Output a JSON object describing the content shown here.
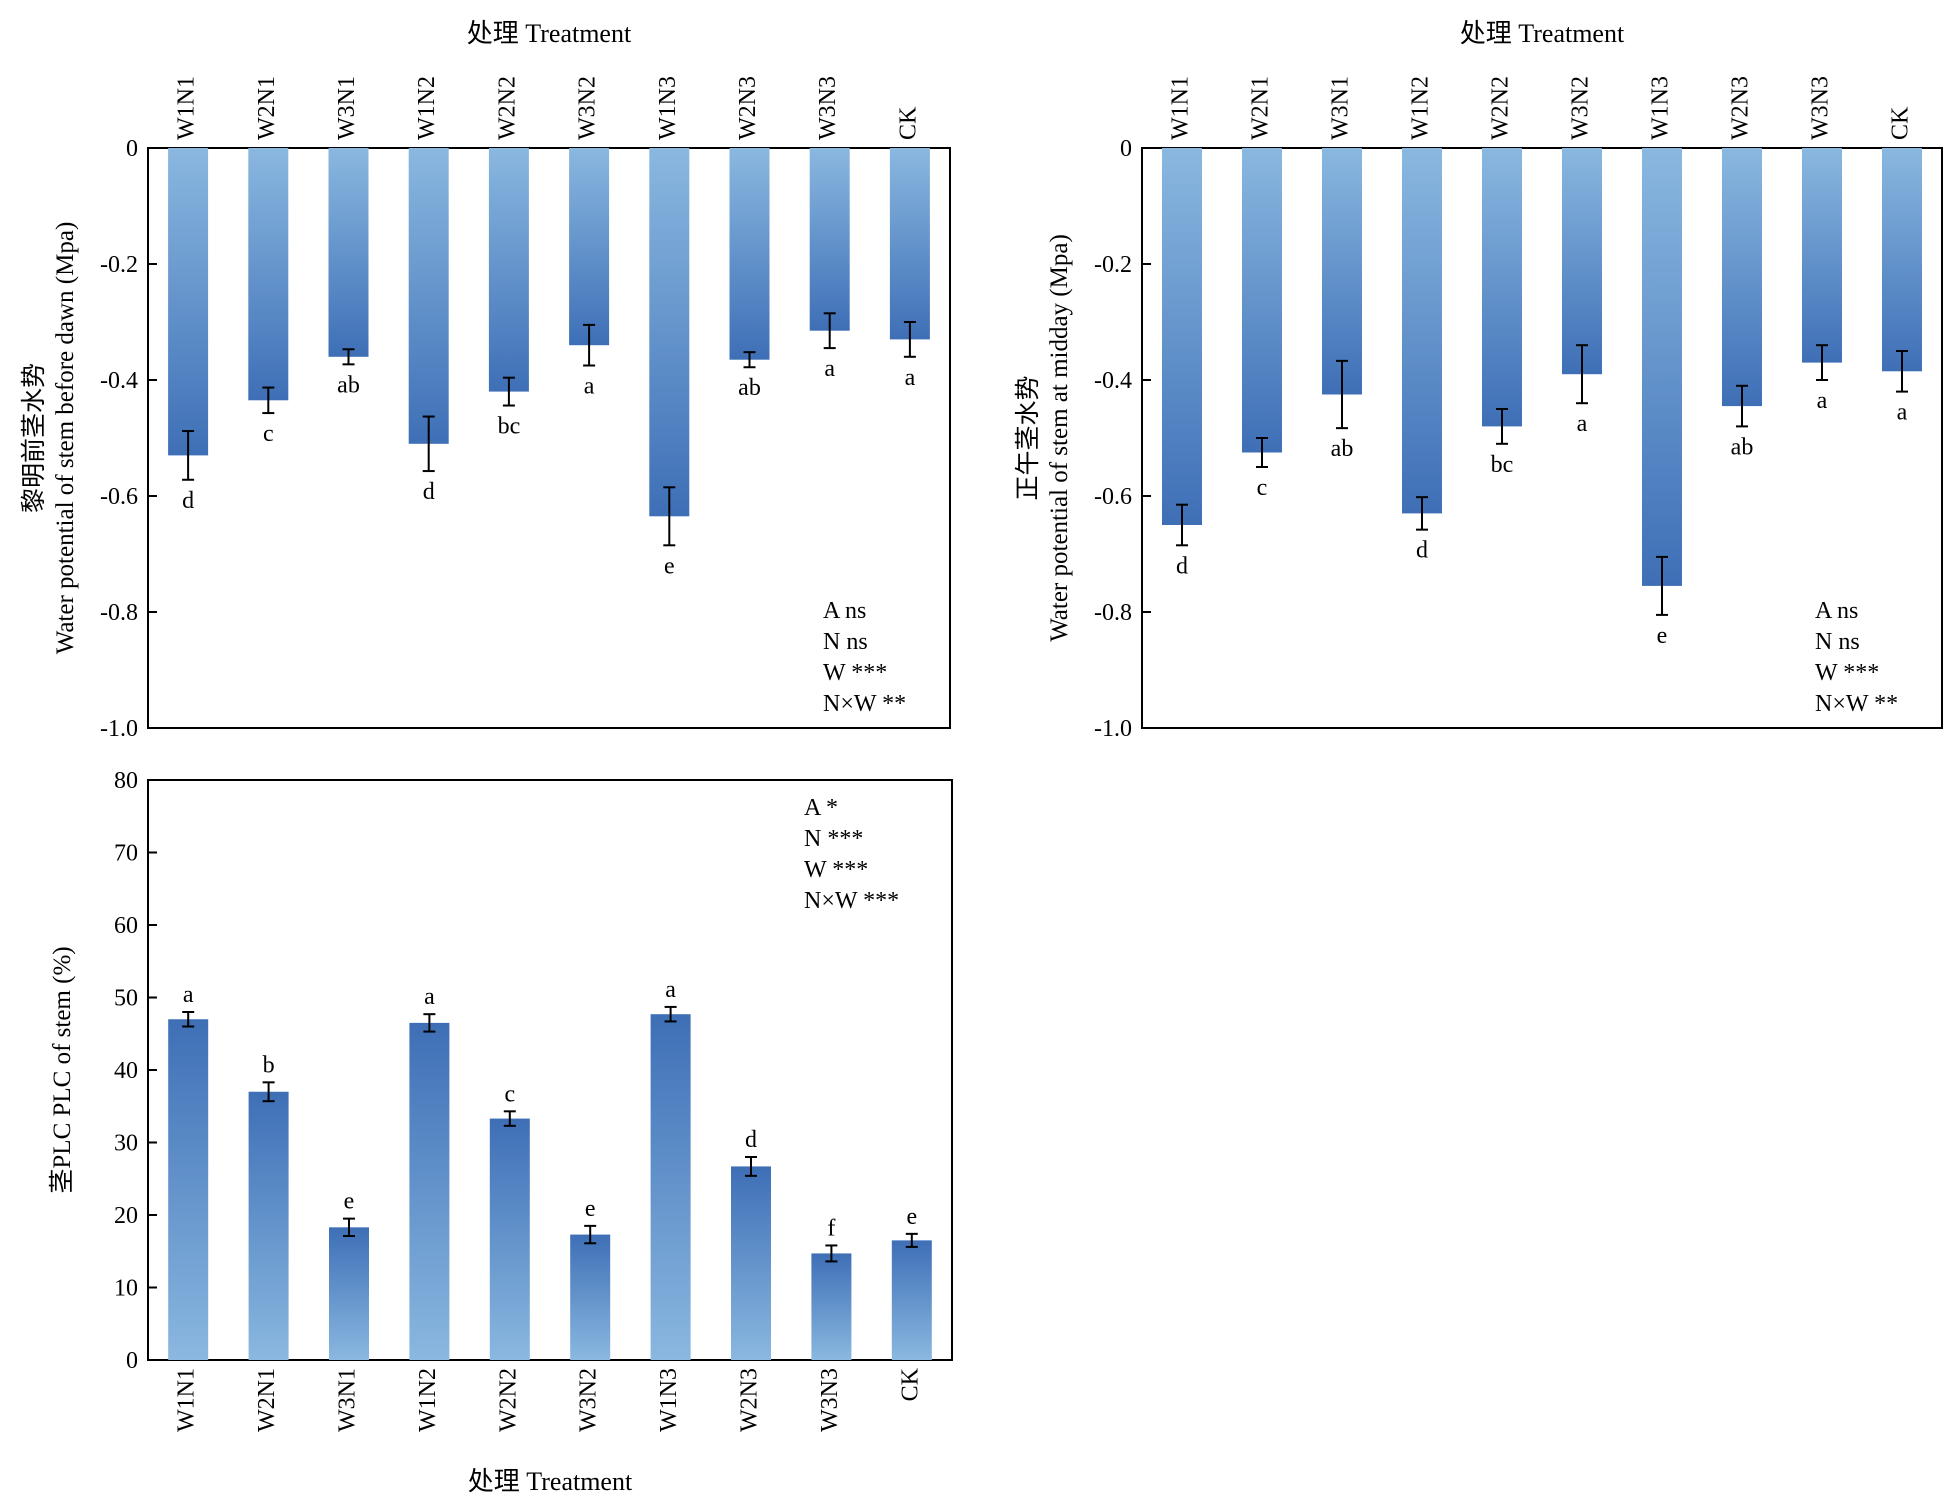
{
  "colors": {
    "bar_light": "#8ab8e0",
    "bar_dark": "#3e6fb6",
    "axis": "#000000",
    "background": "#ffffff"
  },
  "chart_data": [
    {
      "id": "predawn",
      "type": "bar",
      "title": "",
      "xlabel": "处理 Treatment",
      "xlabel_position": "top",
      "ylabel": "黎明前茎水势",
      "ylabel2": "Water potential of stem before dawn (Mpa)",
      "categories": [
        "W1N1",
        "W2N1",
        "W3N1",
        "W1N2",
        "W2N2",
        "W3N2",
        "W1N3",
        "W2N3",
        "W3N3",
        "CK"
      ],
      "values": [
        -0.53,
        -0.435,
        -0.36,
        -0.51,
        -0.42,
        -0.34,
        -0.635,
        -0.365,
        -0.315,
        -0.33
      ],
      "errors": [
        0.042,
        0.022,
        0.013,
        0.047,
        0.024,
        0.035,
        0.05,
        0.013,
        0.03,
        0.03
      ],
      "letters": [
        "d",
        "c",
        "ab",
        "d",
        "bc",
        "a",
        "e",
        "ab",
        "a",
        "a"
      ],
      "ylim": [
        -1.0,
        0
      ],
      "yticks": [
        0,
        -0.2,
        -0.4,
        -0.6,
        -0.8,
        -1.0
      ],
      "ytick_labels": [
        "0",
        "-0.2",
        "-0.4",
        "-0.6",
        "-0.8",
        "-1.0"
      ],
      "stats": [
        "A ns",
        "N ns",
        "W ***",
        "N×W **"
      ]
    },
    {
      "id": "midday",
      "type": "bar",
      "title": "",
      "xlabel": "处理 Treatment",
      "xlabel_position": "top",
      "ylabel": "正午茎水势",
      "ylabel2": "Water potential of stem at midday (Mpa)",
      "categories": [
        "W1N1",
        "W2N1",
        "W3N1",
        "W1N2",
        "W2N2",
        "W3N2",
        "W1N3",
        "W2N3",
        "W3N3",
        "CK"
      ],
      "values": [
        -0.65,
        -0.525,
        -0.425,
        -0.63,
        -0.48,
        -0.39,
        -0.755,
        -0.445,
        -0.37,
        -0.385
      ],
      "errors": [
        0.035,
        0.025,
        0.058,
        0.028,
        0.03,
        0.05,
        0.05,
        0.035,
        0.03,
        0.035
      ],
      "letters": [
        "d",
        "c",
        "ab",
        "d",
        "bc",
        "a",
        "e",
        "ab",
        "a",
        "a"
      ],
      "ylim": [
        -1.0,
        0
      ],
      "yticks": [
        0,
        -0.2,
        -0.4,
        -0.6,
        -0.8,
        -1.0
      ],
      "ytick_labels": [
        "0",
        "-0.2",
        "-0.4",
        "-0.6",
        "-0.8",
        "-1.0"
      ],
      "stats": [
        "A ns",
        "N ns",
        "W ***",
        "N×W **"
      ]
    },
    {
      "id": "plc",
      "type": "bar",
      "title": "",
      "xlabel": "处理 Treatment",
      "xlabel_position": "bottom",
      "ylabel": "茎PLC PLC of stem (%)",
      "ylabel2": "",
      "categories": [
        "W1N1",
        "W2N1",
        "W3N1",
        "W1N2",
        "W2N2",
        "W3N2",
        "W1N3",
        "W2N3",
        "W3N3",
        "CK"
      ],
      "values": [
        47,
        37,
        18.3,
        46.5,
        33.3,
        17.3,
        47.7,
        26.7,
        14.7,
        16.5
      ],
      "errors": [
        1.0,
        1.3,
        1.2,
        1.2,
        1.0,
        1.2,
        1.0,
        1.3,
        1.1,
        0.9
      ],
      "letters": [
        "a",
        "b",
        "e",
        "a",
        "c",
        "e",
        "a",
        "d",
        "f",
        "e"
      ],
      "ylim": [
        0,
        80
      ],
      "yticks": [
        0,
        10,
        20,
        30,
        40,
        50,
        60,
        70,
        80
      ],
      "ytick_labels": [
        "0",
        "10",
        "20",
        "30",
        "40",
        "50",
        "60",
        "70",
        "80"
      ],
      "stats": [
        "A *",
        "N ***",
        "W ***",
        "N×W ***"
      ]
    }
  ]
}
